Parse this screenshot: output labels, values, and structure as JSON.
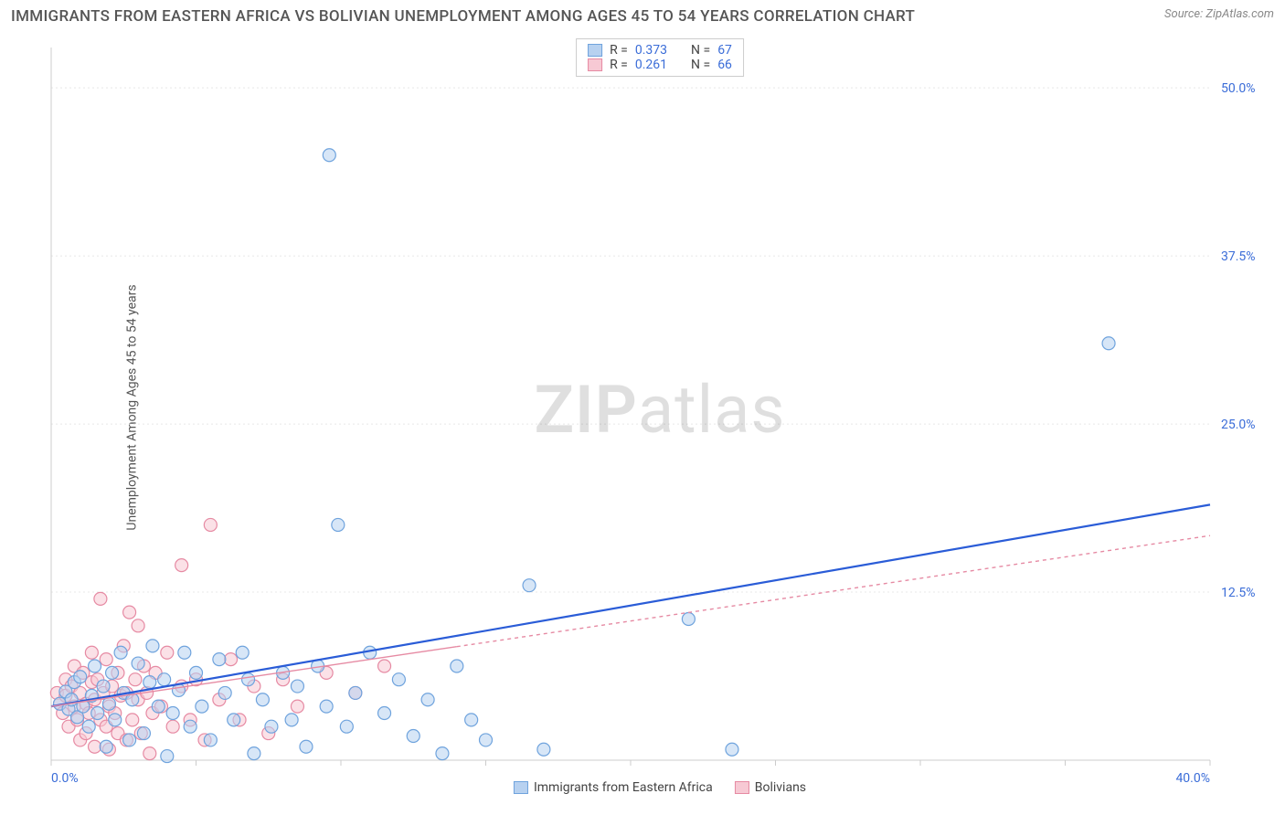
{
  "header": {
    "title": "IMMIGRANTS FROM EASTERN AFRICA VS BOLIVIAN UNEMPLOYMENT AMONG AGES 45 TO 54 YEARS CORRELATION CHART",
    "source": "Source: ZipAtlas.com"
  },
  "watermark": {
    "zip": "ZIP",
    "atlas": "atlas"
  },
  "chart": {
    "type": "scatter",
    "y_label": "Unemployment Among Ages 45 to 54 years",
    "x_range": [
      0,
      40
    ],
    "y_range": [
      0,
      53
    ],
    "x_ticks": [
      {
        "v": 0,
        "label": "0.0%"
      },
      {
        "v": 5,
        "label": ""
      },
      {
        "v": 10,
        "label": ""
      },
      {
        "v": 15,
        "label": ""
      },
      {
        "v": 20,
        "label": ""
      },
      {
        "v": 25,
        "label": ""
      },
      {
        "v": 30,
        "label": ""
      },
      {
        "v": 35,
        "label": ""
      },
      {
        "v": 40,
        "label": "40.0%"
      }
    ],
    "y_ticks": [
      {
        "v": 12.5,
        "label": "12.5%"
      },
      {
        "v": 25.0,
        "label": "25.0%"
      },
      {
        "v": 37.5,
        "label": "37.5%"
      },
      {
        "v": 50.0,
        "label": "50.0%"
      }
    ],
    "grid_color": "#e8e8e8",
    "axis_color": "#cccccc",
    "tick_label_color": "#3b6dd8",
    "marker_radius": 7,
    "marker_stroke_width": 1.2,
    "series": [
      {
        "name": "Immigrants from Eastern Africa",
        "fill": "#b7d1f0",
        "stroke": "#6fa3dd",
        "fill_opacity": 0.55,
        "trend": {
          "x1": 0,
          "y1": 4.0,
          "x2": 40,
          "y2": 19.0,
          "color": "#2a5cd7",
          "width": 2.2,
          "dash": ""
        },
        "R": "0.373",
        "N": "67",
        "points": [
          [
            0.3,
            4.2
          ],
          [
            0.5,
            5.1
          ],
          [
            0.6,
            3.8
          ],
          [
            0.7,
            4.5
          ],
          [
            0.8,
            5.8
          ],
          [
            0.9,
            3.2
          ],
          [
            1.0,
            6.2
          ],
          [
            1.1,
            4.0
          ],
          [
            1.3,
            2.5
          ],
          [
            1.4,
            4.8
          ],
          [
            1.5,
            7.0
          ],
          [
            1.6,
            3.5
          ],
          [
            1.8,
            5.5
          ],
          [
            1.9,
            1.0
          ],
          [
            2.0,
            4.2
          ],
          [
            2.1,
            6.5
          ],
          [
            2.2,
            3.0
          ],
          [
            2.4,
            8.0
          ],
          [
            2.5,
            5.0
          ],
          [
            2.7,
            1.5
          ],
          [
            2.8,
            4.5
          ],
          [
            3.0,
            7.2
          ],
          [
            3.2,
            2.0
          ],
          [
            3.4,
            5.8
          ],
          [
            3.5,
            8.5
          ],
          [
            3.7,
            4.0
          ],
          [
            3.9,
            6.0
          ],
          [
            4.0,
            0.3
          ],
          [
            4.2,
            3.5
          ],
          [
            4.4,
            5.2
          ],
          [
            4.6,
            8.0
          ],
          [
            4.8,
            2.5
          ],
          [
            5.0,
            6.5
          ],
          [
            5.2,
            4.0
          ],
          [
            5.5,
            1.5
          ],
          [
            5.8,
            7.5
          ],
          [
            6.0,
            5.0
          ],
          [
            6.3,
            3.0
          ],
          [
            6.6,
            8.0
          ],
          [
            6.8,
            6.0
          ],
          [
            7.0,
            0.5
          ],
          [
            7.3,
            4.5
          ],
          [
            7.6,
            2.5
          ],
          [
            8.0,
            6.5
          ],
          [
            8.3,
            3.0
          ],
          [
            8.5,
            5.5
          ],
          [
            8.8,
            1.0
          ],
          [
            9.2,
            7.0
          ],
          [
            9.5,
            4.0
          ],
          [
            9.9,
            17.5
          ],
          [
            10.2,
            2.5
          ],
          [
            10.5,
            5.0
          ],
          [
            11.0,
            8.0
          ],
          [
            11.5,
            3.5
          ],
          [
            12.0,
            6.0
          ],
          [
            12.5,
            1.8
          ],
          [
            13.0,
            4.5
          ],
          [
            13.5,
            0.5
          ],
          [
            14.0,
            7.0
          ],
          [
            14.5,
            3.0
          ],
          [
            15.0,
            1.5
          ],
          [
            16.5,
            13.0
          ],
          [
            17.0,
            0.8
          ],
          [
            9.6,
            45.0
          ],
          [
            22.0,
            10.5
          ],
          [
            23.5,
            0.8
          ],
          [
            36.5,
            31.0
          ]
        ]
      },
      {
        "name": "Bolivians",
        "fill": "#f7c9d4",
        "stroke": "#e68aa3",
        "fill_opacity": 0.55,
        "trend": {
          "x1": 0,
          "y1": 4.0,
          "x2": 40,
          "y2": 16.7,
          "color": "#e68aa3",
          "width": 1.4,
          "dash": "4 4",
          "solid_until": 14
        },
        "R": "0.261",
        "N": "66",
        "points": [
          [
            0.2,
            5.0
          ],
          [
            0.3,
            4.2
          ],
          [
            0.4,
            3.5
          ],
          [
            0.5,
            6.0
          ],
          [
            0.5,
            4.8
          ],
          [
            0.6,
            2.5
          ],
          [
            0.7,
            5.5
          ],
          [
            0.8,
            4.0
          ],
          [
            0.8,
            7.0
          ],
          [
            0.9,
            3.0
          ],
          [
            1.0,
            1.5
          ],
          [
            1.0,
            5.0
          ],
          [
            1.1,
            6.5
          ],
          [
            1.2,
            4.2
          ],
          [
            1.2,
            2.0
          ],
          [
            1.3,
            3.5
          ],
          [
            1.4,
            5.8
          ],
          [
            1.4,
            8.0
          ],
          [
            1.5,
            1.0
          ],
          [
            1.5,
            4.5
          ],
          [
            1.6,
            6.0
          ],
          [
            1.7,
            3.0
          ],
          [
            1.7,
            12.0
          ],
          [
            1.8,
            5.0
          ],
          [
            1.9,
            2.5
          ],
          [
            1.9,
            7.5
          ],
          [
            2.0,
            4.0
          ],
          [
            2.0,
            0.8
          ],
          [
            2.1,
            5.5
          ],
          [
            2.2,
            3.5
          ],
          [
            2.3,
            6.5
          ],
          [
            2.3,
            2.0
          ],
          [
            2.4,
            4.8
          ],
          [
            2.5,
            8.5
          ],
          [
            2.6,
            1.5
          ],
          [
            2.6,
            5.0
          ],
          [
            2.7,
            11.0
          ],
          [
            2.8,
            3.0
          ],
          [
            2.9,
            6.0
          ],
          [
            3.0,
            4.5
          ],
          [
            3.0,
            10.0
          ],
          [
            3.1,
            2.0
          ],
          [
            3.2,
            7.0
          ],
          [
            3.3,
            5.0
          ],
          [
            3.4,
            0.5
          ],
          [
            3.5,
            3.5
          ],
          [
            3.6,
            6.5
          ],
          [
            3.8,
            4.0
          ],
          [
            4.0,
            8.0
          ],
          [
            4.2,
            2.5
          ],
          [
            4.5,
            5.5
          ],
          [
            4.5,
            14.5
          ],
          [
            4.8,
            3.0
          ],
          [
            5.0,
            6.0
          ],
          [
            5.3,
            1.5
          ],
          [
            5.5,
            17.5
          ],
          [
            5.8,
            4.5
          ],
          [
            6.2,
            7.5
          ],
          [
            6.5,
            3.0
          ],
          [
            7.0,
            5.5
          ],
          [
            7.5,
            2.0
          ],
          [
            8.0,
            6.0
          ],
          [
            8.5,
            4.0
          ],
          [
            9.5,
            6.5
          ],
          [
            10.5,
            5.0
          ],
          [
            11.5,
            7.0
          ]
        ]
      }
    ],
    "legend_top": {
      "r_label": "R =",
      "n_label": "N ="
    },
    "legend_bottom": {}
  }
}
